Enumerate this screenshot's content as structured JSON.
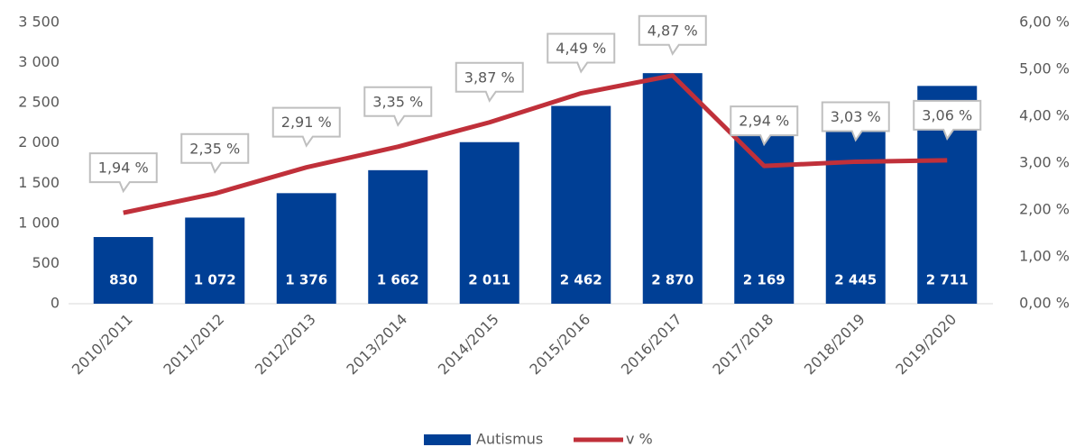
{
  "chart_data": {
    "type": "bar",
    "categories": [
      "2010/2011",
      "2011/2012",
      "2012/2013",
      "2013/2014",
      "2014/2015",
      "2015/2016",
      "2016/2017",
      "2017/2018",
      "2018/2019",
      "2019/2020"
    ],
    "series": [
      {
        "name": "Autismus",
        "type": "bar",
        "color": "#003f95",
        "values": [
          830,
          1072,
          1376,
          1662,
          2011,
          2462,
          2870,
          2169,
          2445,
          2711
        ],
        "value_labels": [
          "830",
          "1 072",
          "1 376",
          "1 662",
          "2 011",
          "2 462",
          "2 870",
          "2 169",
          "2 445",
          "2 711"
        ]
      },
      {
        "name": "v %",
        "type": "line",
        "axis": "y2",
        "color": "#c0303a",
        "values": [
          1.94,
          2.35,
          2.91,
          3.35,
          3.87,
          4.49,
          4.87,
          2.94,
          3.03,
          3.06
        ],
        "value_labels": [
          "1,94 %",
          "2,35 %",
          "2,91 %",
          "3,35 %",
          "3,87 %",
          "4,49 %",
          "4,87 %",
          "2,94 %",
          "3,03 %",
          "3,06 %"
        ]
      }
    ],
    "ylim": [
      0,
      3500
    ],
    "yticks": [
      0,
      500,
      {
        "value": 1000,
        "label": "1 000"
      },
      {
        "value": 1500,
        "label": "1 500"
      },
      {
        "value": 2000,
        "label": "2 000"
      },
      {
        "value": 2500,
        "label": "2 500"
      },
      {
        "value": 3000,
        "label": "3 000"
      },
      {
        "value": 3500,
        "label": "3 500"
      }
    ],
    "y2lim": [
      0,
      6
    ],
    "y2ticks": [
      {
        "value": 0,
        "label": "0,00 %"
      },
      {
        "value": 1,
        "label": "1,00 %"
      },
      {
        "value": 2,
        "label": "2,00 %"
      },
      {
        "value": 3,
        "label": "3,00 %"
      },
      {
        "value": 4,
        "label": "4,00 %"
      },
      {
        "value": 5,
        "label": "5,00 %"
      },
      {
        "value": 6,
        "label": "6,00 %"
      }
    ],
    "grid": false,
    "legend": "bottom"
  }
}
